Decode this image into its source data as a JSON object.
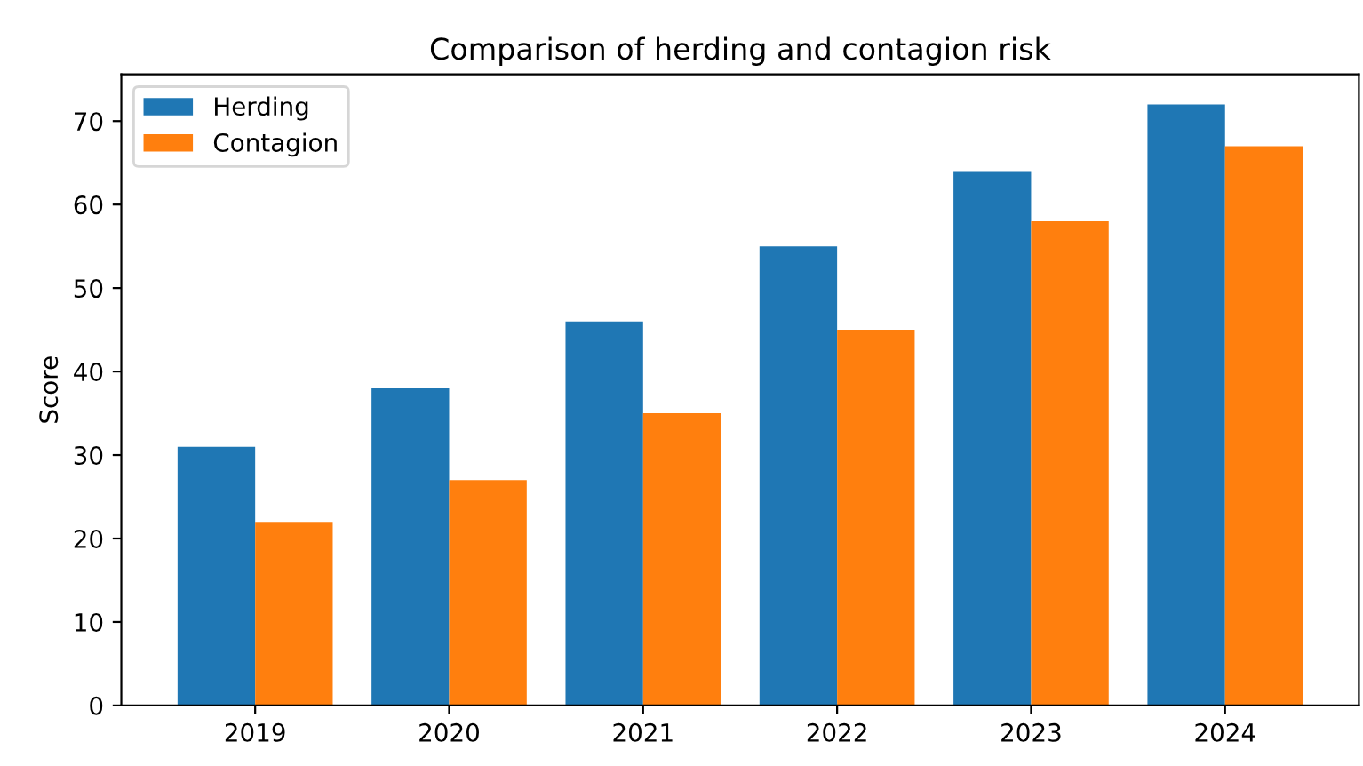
{
  "chart_data": {
    "type": "bar",
    "title": "Comparison of herding and contagion risk",
    "ylabel": "Score",
    "categories": [
      "2019",
      "2020",
      "2021",
      "2022",
      "2023",
      "2024"
    ],
    "series": [
      {
        "name": "Herding",
        "color": "#1f77b4",
        "values": [
          31,
          38,
          46,
          55,
          64,
          72
        ]
      },
      {
        "name": "Contagion",
        "color": "#ff7f0e",
        "values": [
          22,
          27,
          35,
          45,
          58,
          67
        ]
      }
    ],
    "ylim": [
      0,
      75.6
    ],
    "yticks": [
      0,
      10,
      20,
      30,
      40,
      50,
      60,
      70
    ],
    "grid": false,
    "legend": "top left"
  }
}
